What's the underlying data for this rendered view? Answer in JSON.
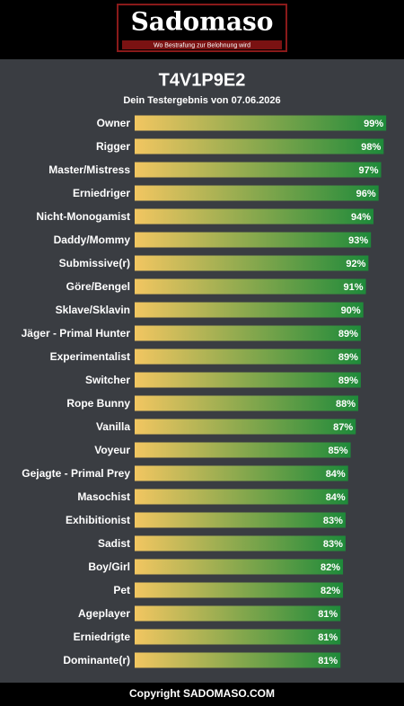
{
  "header": {
    "logo": "Sadomaso",
    "tagline": "Wo Bestrafung zur Belohnung wird"
  },
  "chart_data": {
    "type": "bar",
    "orientation": "horizontal",
    "title": "T4V1P9E2",
    "subtitle": "Dein Testergebnis von 07.06.2026",
    "categories": [
      "Owner",
      "Rigger",
      "Master/Mistress",
      "Erniedriger",
      "Nicht-Monogamist",
      "Daddy/Mommy",
      "Submissive(r)",
      "Göre/Bengel",
      "Sklave/Sklavin",
      "Jäger - Primal Hunter",
      "Experimentalist",
      "Switcher",
      "Rope Bunny",
      "Vanilla",
      "Voyeur",
      "Gejagte - Primal Prey",
      "Masochist",
      "Exhibitionist",
      "Sadist",
      "Boy/Girl",
      "Pet",
      "Ageplayer",
      "Erniedrigte",
      "Dominante(r)"
    ],
    "values": [
      99,
      98,
      97,
      96,
      94,
      93,
      92,
      91,
      90,
      89,
      89,
      89,
      88,
      87,
      85,
      84,
      84,
      83,
      83,
      82,
      82,
      81,
      81,
      81
    ],
    "value_labels": [
      "99%",
      "98%",
      "97%",
      "96%",
      "94%",
      "93%",
      "92%",
      "91%",
      "90%",
      "89%",
      "89%",
      "89%",
      "88%",
      "87%",
      "85%",
      "84%",
      "84%",
      "83%",
      "83%",
      "82%",
      "82%",
      "81%",
      "81%",
      "81%"
    ],
    "xlim": [
      0,
      100
    ],
    "colors": [
      "#f2c661",
      "#1e8a3a"
    ]
  },
  "footer": "Copyright SADOMASO.COM"
}
